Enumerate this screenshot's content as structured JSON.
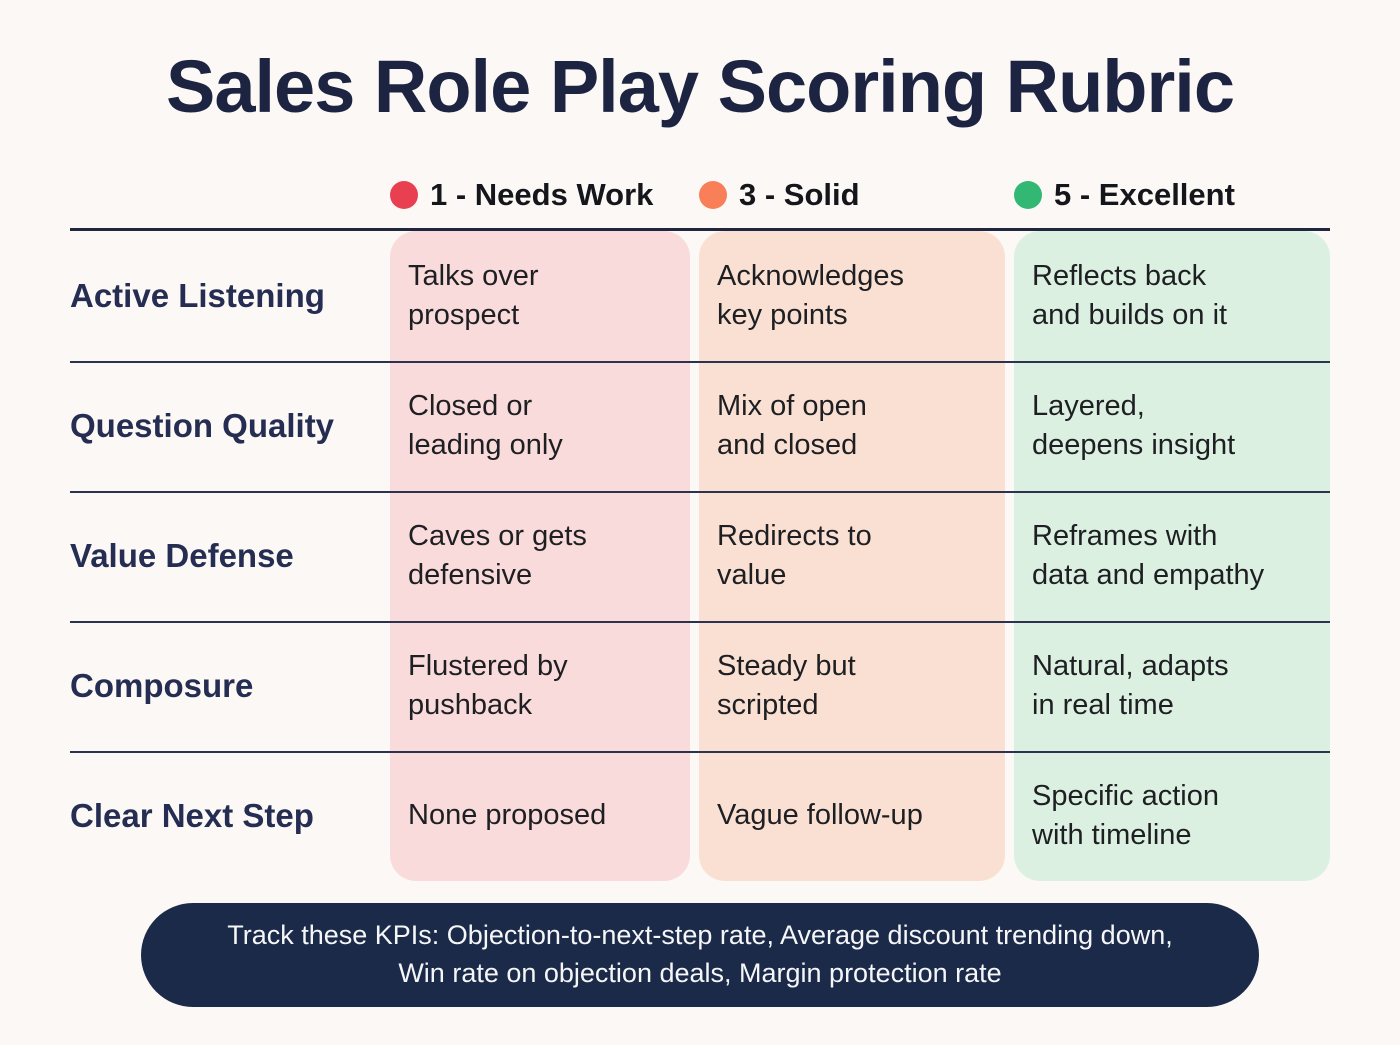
{
  "title": "Sales Role Play Scoring Rubric",
  "colors": {
    "background": "#fbf8f5",
    "title_navy": "#1d2442",
    "needs_work_dot": "#e84050",
    "solid_dot": "#f87f58",
    "excellent_dot": "#33b873",
    "needs_work_band": "#f8dbda",
    "solid_band": "#fae0d3",
    "excellent_band": "#dcf0e2",
    "pill_background": "#1c2a49"
  },
  "legend": {
    "items": [
      {
        "label": "1 - Needs Work",
        "color": "#e84050"
      },
      {
        "label": "3 - Solid",
        "color": "#f87f58"
      },
      {
        "label": "5 - Excellent",
        "color": "#33b873"
      }
    ]
  },
  "rubric": {
    "column_colors": {
      "needs_work": "#f8dbda",
      "solid": "#fae0d3",
      "excellent": "#dcf0e2"
    },
    "rows": [
      {
        "criterion": "Active Listening",
        "needs_work": "Talks over\nprospect",
        "solid": "Acknowledges\nkey points",
        "excellent": "Reflects back\nand builds on it"
      },
      {
        "criterion": "Question Quality",
        "needs_work": "Closed or\nleading only",
        "solid": "Mix of open\nand closed",
        "excellent": "Layered,\ndeepens insight"
      },
      {
        "criterion": "Value Defense",
        "needs_work": "Caves or gets\ndefensive",
        "solid": "Redirects to\nvalue",
        "excellent": "Reframes with\ndata and empathy"
      },
      {
        "criterion": "Composure",
        "needs_work": "Flustered by\npushback",
        "solid": "Steady but\nscripted",
        "excellent": "Natural, adapts\nin real time"
      },
      {
        "criterion": "Clear Next Step",
        "needs_work": "None proposed",
        "solid": "Vague follow-up",
        "excellent": "Specific action\nwith timeline"
      }
    ]
  },
  "footer": {
    "kpi_line1": "Track these KPIs: Objection-to-next-step rate, Average discount trending down,",
    "kpi_line2": "Win rate on objection deals, Margin protection rate"
  }
}
